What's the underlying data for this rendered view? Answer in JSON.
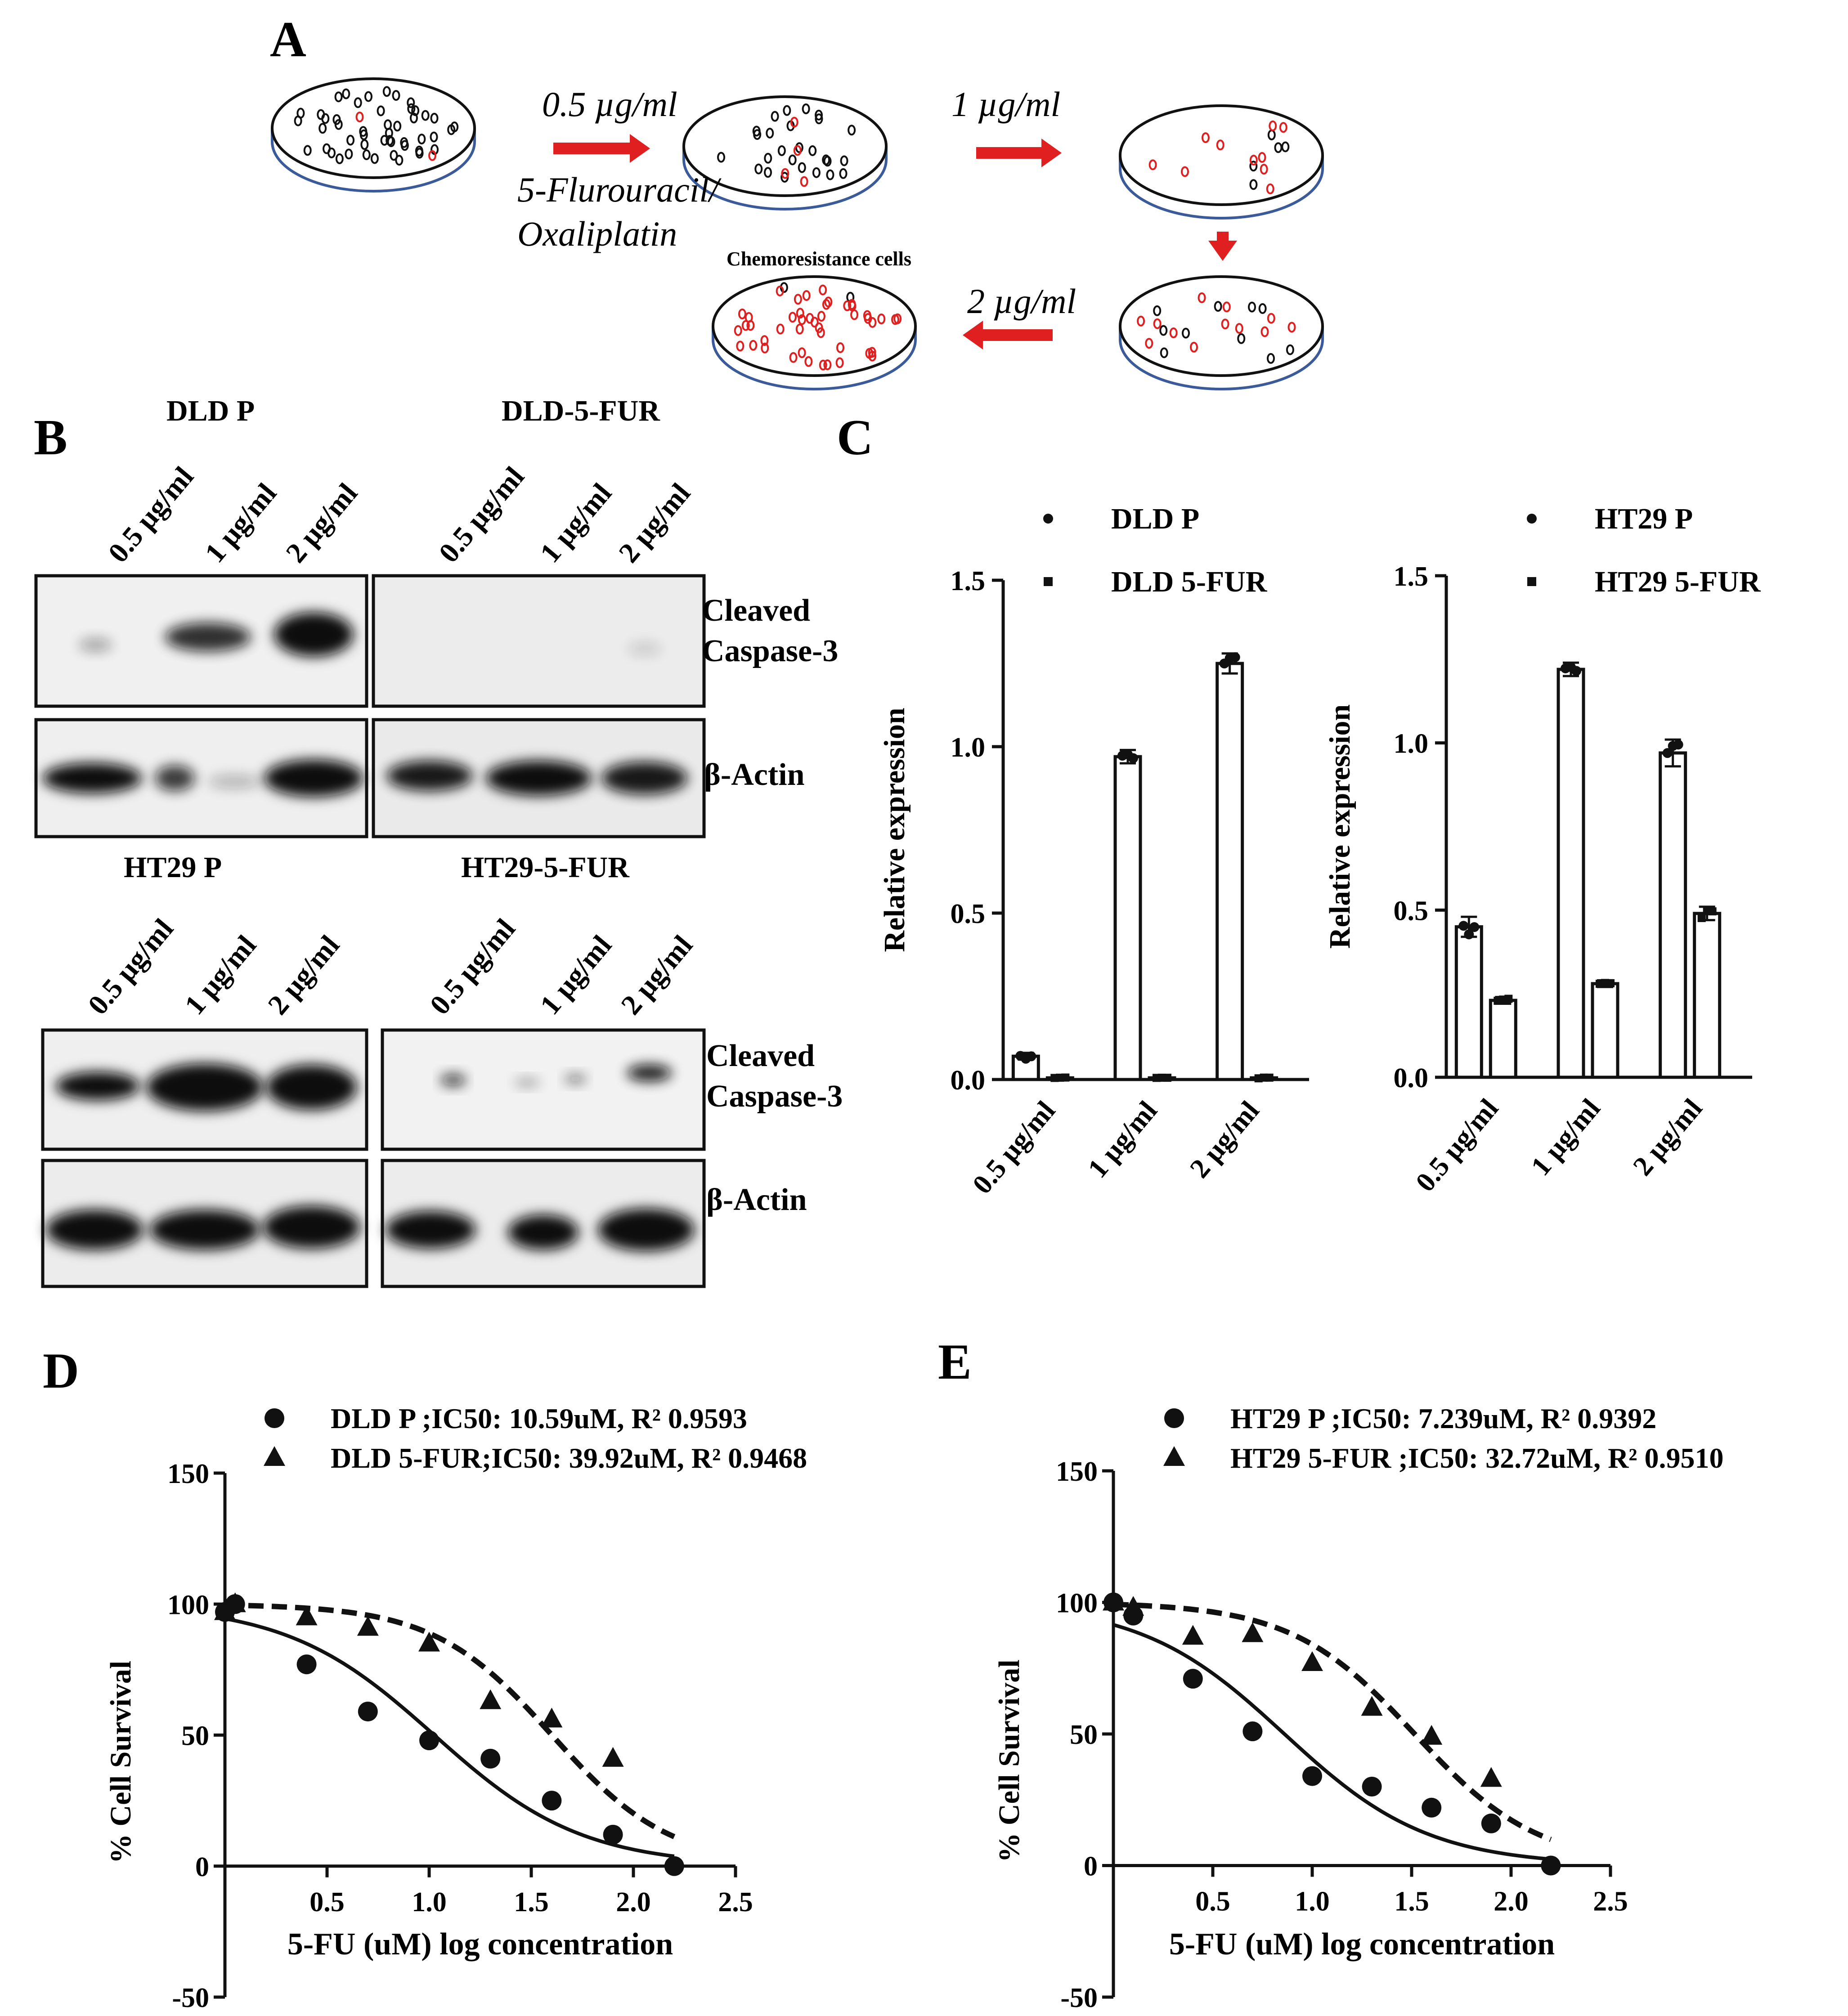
{
  "panel_letters": [
    "A",
    "B",
    "C",
    "D",
    "E"
  ],
  "panel_a": {
    "arrow_labels": [
      "0.5 µg/ml",
      "1 µg/ml",
      "2 µg/ml"
    ],
    "drug_label_line1": "5-Flurouracil/",
    "drug_label_line2": "Oxaliplatin",
    "result_label": "Chemoresistance cells",
    "colors": {
      "arrow": "#e02020",
      "resistant_cell": "#e02020",
      "normal_cell": "#111111",
      "dish_base": "#3a5a9a"
    }
  },
  "panel_b": {
    "groups": [
      {
        "left_title": "DLD P",
        "right_title": "DLD-5-FUR"
      },
      {
        "left_title": "HT29 P",
        "right_title": "HT29-5-FUR"
      }
    ],
    "lane_labels": [
      "0.5 µg/ml",
      "1 µg/ml",
      "2 µg/ml"
    ],
    "protein_line1": "Cleaved",
    "protein_line2": "Caspase-3",
    "loading_control": "β-Actin"
  },
  "chart_data": [
    {
      "panel": "C-left",
      "type": "bar",
      "categories": [
        "0.5 µg/ml",
        "1 µg/ml",
        "2 µg/ml"
      ],
      "series": [
        {
          "name": "DLD P",
          "values": [
            0.07,
            0.97,
            1.25
          ],
          "errors": [
            0.01,
            0.02,
            0.03
          ]
        },
        {
          "name": "DLD 5-FUR",
          "values": [
            0.005,
            0.005,
            0.005
          ],
          "errors": [
            0.002,
            0.002,
            0.002
          ]
        }
      ],
      "ylabel": "Relative expression",
      "ylim": [
        0,
        1.5
      ],
      "yticks": [
        "0.0",
        "0.5",
        "1.0",
        "1.5"
      ],
      "legend": "top-right"
    },
    {
      "panel": "C-right",
      "type": "bar",
      "categories": [
        "0.5 µg/ml",
        "1 µg/ml",
        "2 µg/ml"
      ],
      "series": [
        {
          "name": "HT29 P",
          "values": [
            0.45,
            1.22,
            0.97
          ],
          "errors": [
            0.03,
            0.02,
            0.04
          ]
        },
        {
          "name": "HT29 5-FUR",
          "values": [
            0.23,
            0.28,
            0.49
          ],
          "errors": [
            0.01,
            0.01,
            0.02
          ]
        }
      ],
      "ylabel": "Relative expression",
      "ylim": [
        0,
        1.5
      ],
      "yticks": [
        "0.0",
        "0.5",
        "1.0",
        "1.5"
      ],
      "legend": "top-right"
    },
    {
      "panel": "D",
      "type": "scatter",
      "xlabel": "5-FU (uM) log concentration",
      "ylabel": "% Cell Survival",
      "xlim": [
        0,
        2.5
      ],
      "ylim": [
        -50,
        150
      ],
      "xticks": [
        "0.5",
        "1.0",
        "1.5",
        "2.0",
        "2.5"
      ],
      "yticks": [
        "-50",
        "0",
        "50",
        "100",
        "150"
      ],
      "legend": "top",
      "series": [
        {
          "name": "DLD P ;IC50: 10.59uM, R² 0.9593",
          "marker": "circle",
          "line": "solid",
          "x": [
            0.0,
            0.05,
            0.4,
            0.7,
            1.0,
            1.3,
            1.6,
            1.9,
            2.2
          ],
          "y": [
            97,
            100,
            77,
            59,
            48,
            41,
            25,
            12,
            0
          ],
          "fit": {
            "log_ic50": 1.025,
            "hill": 1.2
          }
        },
        {
          "name": "DLD 5-FUR;IC50: 39.92uM, R² 0.9468",
          "marker": "triangle",
          "line": "dashed",
          "x": [
            0.0,
            0.05,
            0.4,
            0.7,
            1.0,
            1.3,
            1.6,
            1.9
          ],
          "y": [
            97,
            100,
            95,
            91,
            85,
            63,
            56,
            41
          ],
          "fit": {
            "log_ic50": 1.601,
            "hill": 1.5
          }
        }
      ]
    },
    {
      "panel": "E",
      "type": "scatter",
      "xlabel": "5-FU (uM) log concentration",
      "ylabel": "% Cell Survival",
      "xlim": [
        0,
        2.5
      ],
      "ylim": [
        -50,
        150
      ],
      "xticks": [
        "0.5",
        "1.0",
        "1.5",
        "2.0",
        "2.5"
      ],
      "yticks": [
        "-50",
        "0",
        "50",
        "100",
        "150"
      ],
      "legend": "top",
      "series": [
        {
          "name": "HT29 P ;IC50: 7.239uM, R² 0.9392",
          "marker": "circle",
          "line": "solid",
          "x": [
            0.0,
            0.1,
            0.4,
            0.7,
            1.0,
            1.3,
            1.6,
            1.9,
            2.2
          ],
          "y": [
            100,
            95,
            71,
            51,
            34,
            30,
            22,
            16,
            0
          ],
          "fit": {
            "log_ic50": 0.86,
            "hill": 1.2
          }
        },
        {
          "name": "HT29 5-FUR ;IC50: 32.72uM, R² 0.9510",
          "marker": "triangle",
          "line": "dashed",
          "x": [
            0.0,
            0.1,
            0.4,
            0.7,
            1.0,
            1.3,
            1.6,
            1.9
          ],
          "y": [
            100,
            98,
            87,
            88,
            77,
            60,
            49,
            33
          ],
          "fit": {
            "log_ic50": 1.515,
            "hill": 1.4
          }
        }
      ]
    }
  ]
}
